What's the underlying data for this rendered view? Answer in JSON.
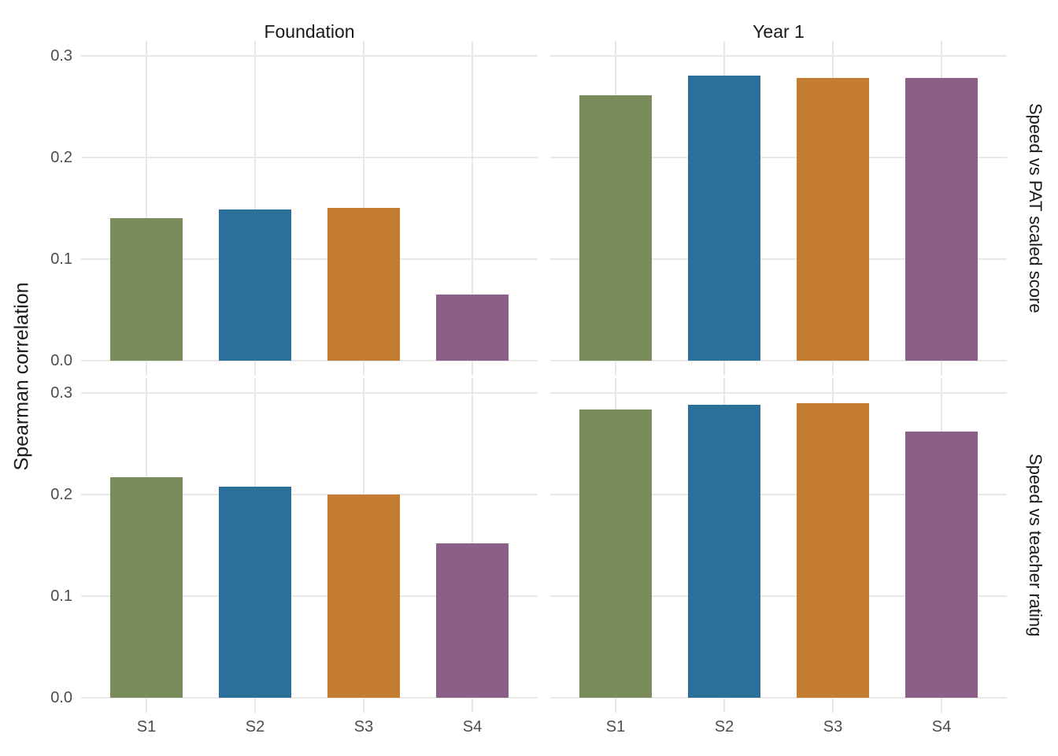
{
  "chart_data": {
    "type": "bar",
    "title": "",
    "ylabel": "Spearman correlation",
    "xlabel": "",
    "categories": [
      "S1",
      "S2",
      "S3",
      "S4"
    ],
    "col_facets": [
      "Foundation",
      "Year 1"
    ],
    "row_facets": [
      "Speed vs PAT scaled score",
      "Speed vs teacher rating"
    ],
    "ylim": [
      0,
      0.3
    ],
    "grid": true,
    "legend": "none",
    "y_ticks": [
      {
        "label": "0.0",
        "value": 0.0
      },
      {
        "label": "0.1",
        "value": 0.1
      },
      {
        "label": "0.2",
        "value": 0.2
      },
      {
        "label": "0.3",
        "value": 0.3
      }
    ],
    "bar_colors": [
      "#7B8C5C",
      "#2C6F9A",
      "#C47C33",
      "#8C5F87"
    ],
    "gridline_color": "#E8E8E8",
    "tick_label_color": "#4D4D4D",
    "text_color": "#1A1A1A",
    "panels": [
      {
        "row": "Speed vs PAT scaled score",
        "col": "Foundation",
        "values": [
          0.14,
          0.149,
          0.15,
          0.065
        ]
      },
      {
        "row": "Speed vs PAT scaled score",
        "col": "Year 1",
        "values": [
          0.261,
          0.281,
          0.278,
          0.278
        ]
      },
      {
        "row": "Speed vs teacher rating",
        "col": "Foundation",
        "values": [
          0.217,
          0.208,
          0.2,
          0.152
        ]
      },
      {
        "row": "Speed vs teacher rating",
        "col": "Year 1",
        "values": [
          0.284,
          0.288,
          0.29,
          0.262
        ]
      }
    ]
  }
}
